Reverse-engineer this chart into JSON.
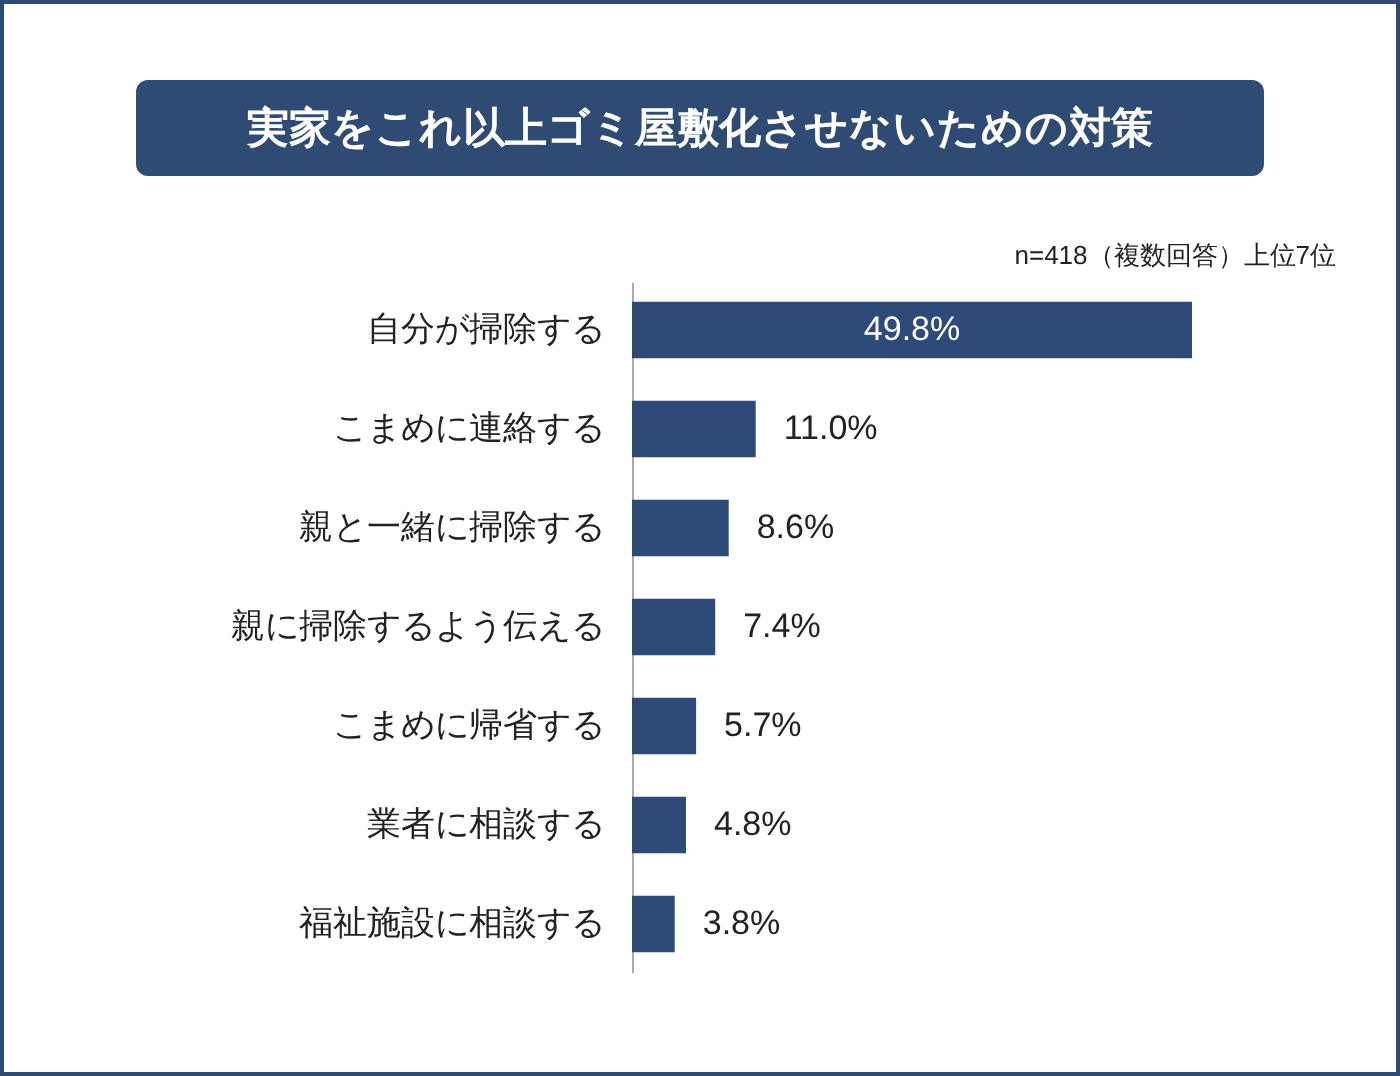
{
  "chart_data": {
    "type": "bar",
    "orientation": "horizontal",
    "title": "実家をこれ以上ゴミ屋敷化させないための対策",
    "subtitle": "n=418（複数回答）上位7位",
    "categories": [
      "自分が掃除する",
      "こまめに連絡する",
      "親と一緒に掃除する",
      "親に掃除するよう伝える",
      "こまめに帰省する",
      "業者に相談する",
      "福祉施設に相談する"
    ],
    "values": [
      49.8,
      11.0,
      8.6,
      7.4,
      5.7,
      4.8,
      3.8
    ],
    "value_labels": [
      "49.8%",
      "11.0%",
      "8.6%",
      "7.4%",
      "5.7%",
      "4.8%",
      "3.8%"
    ],
    "color": "#2d4a78"
  }
}
